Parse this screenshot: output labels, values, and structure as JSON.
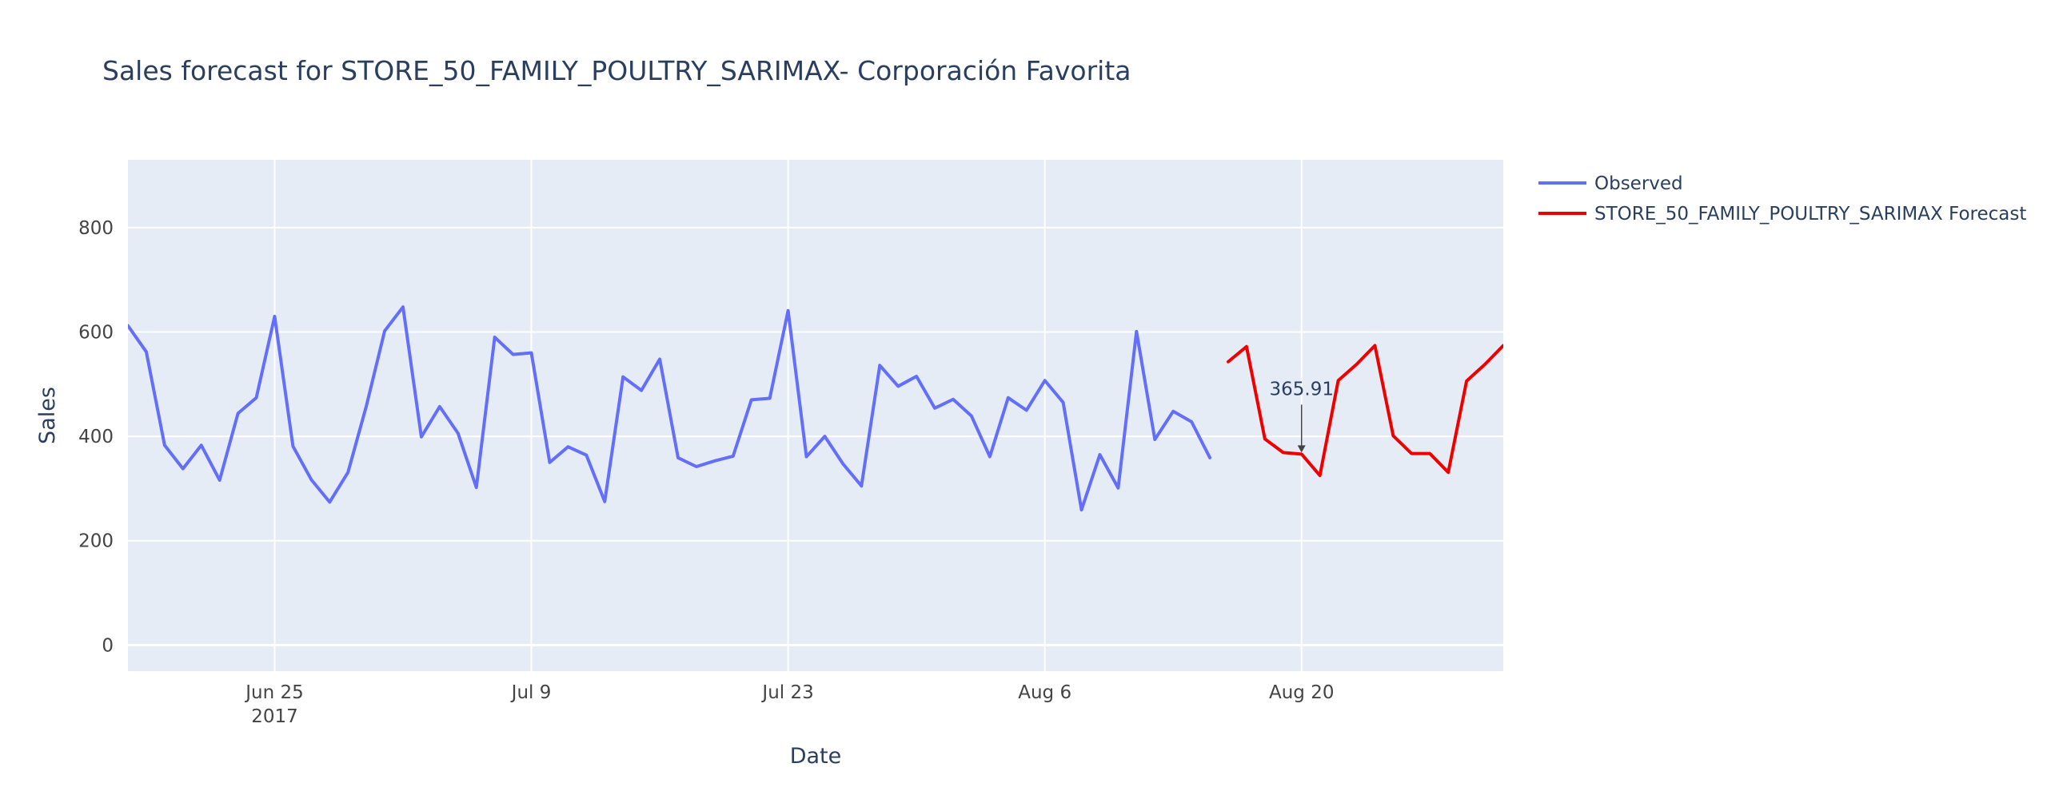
{
  "chart_data": {
    "type": "line",
    "title": "Sales forecast for STORE_50_FAMILY_POULTRY_SARIMAX- Corporación Favorita",
    "xlabel": "Date",
    "ylabel": "Sales",
    "x_range": [
      "2017-06-17",
      "2017-08-31"
    ],
    "ylim": [
      -50,
      930
    ],
    "y_ticks": [
      0,
      200,
      400,
      600,
      800
    ],
    "x_ticks": [
      {
        "date": "2017-06-25",
        "label": "Jun 25",
        "sublabel": "2017"
      },
      {
        "date": "2017-07-09",
        "label": "Jul 9",
        "sublabel": ""
      },
      {
        "date": "2017-07-23",
        "label": "Jul 23",
        "sublabel": ""
      },
      {
        "date": "2017-08-06",
        "label": "Aug 6",
        "sublabel": ""
      },
      {
        "date": "2017-08-20",
        "label": "Aug 20",
        "sublabel": ""
      }
    ],
    "grid": true,
    "legend_position": "top-right outside",
    "series": [
      {
        "name": "Observed",
        "color": "#636efa",
        "start_date": "2017-06-17",
        "values": [
          612,
          562,
          383,
          338,
          383,
          316,
          444,
          474,
          630,
          381,
          317,
          274,
          331,
          458,
          602,
          648,
          399,
          457,
          406,
          302,
          590,
          557,
          560,
          350,
          380,
          364,
          275,
          514,
          488,
          548,
          359,
          342,
          353,
          362,
          470,
          473,
          641,
          361,
          400,
          347,
          305,
          536,
          496,
          515,
          454,
          471,
          439,
          361,
          474,
          450,
          507,
          465,
          259,
          365,
          301,
          601,
          394,
          448,
          428,
          359
        ]
      },
      {
        "name": "STORE_50_FAMILY_POULTRY_SARIMAX Forecast",
        "color": "#ee0000",
        "start_date": "2017-08-16",
        "values": [
          543,
          572,
          395,
          369,
          366,
          325,
          507,
          538,
          574,
          401,
          367,
          367,
          331,
          506,
          538,
          574
        ]
      }
    ],
    "annotations": [
      {
        "date": "2017-08-20",
        "value": 365.91,
        "text": "365.91"
      }
    ]
  }
}
